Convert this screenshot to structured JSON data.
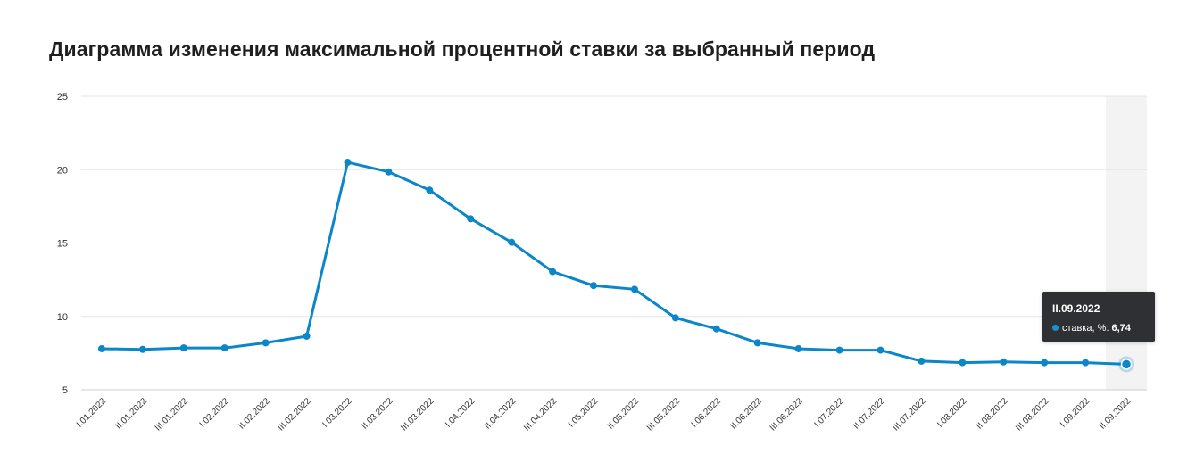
{
  "chart_data": {
    "type": "line",
    "title": "Диаграмма изменения максимальной процентной ставки за выбранный период",
    "xlabel": "",
    "ylabel": "",
    "ylim": [
      5,
      25
    ],
    "yticks": [
      5,
      10,
      15,
      20,
      25
    ],
    "grid": true,
    "categories": [
      "I.01.2022",
      "II.01.2022",
      "III.01.2022",
      "I.02.2022",
      "II.02.2022",
      "III.02.2022",
      "I.03.2022",
      "II.03.2022",
      "III.03.2022",
      "I.04.2022",
      "II.04.2022",
      "III.04.2022",
      "I.05.2022",
      "II.05.2022",
      "III.05.2022",
      "I.06.2022",
      "II.06.2022",
      "III.06.2022",
      "I.07.2022",
      "II.07.2022",
      "III.07.2022",
      "I.08.2022",
      "II.08.2022",
      "III.08.2022",
      "I.09.2022",
      "II.09.2022"
    ],
    "series": [
      {
        "name": "ставка, %",
        "color": "#0a86c9",
        "values": [
          7.8,
          7.75,
          7.85,
          7.85,
          8.2,
          8.65,
          20.5,
          19.85,
          18.6,
          16.65,
          15.05,
          13.05,
          12.1,
          11.85,
          9.9,
          9.15,
          8.2,
          7.8,
          7.7,
          7.7,
          6.95,
          6.85,
          6.9,
          6.85,
          6.85,
          6.74
        ]
      }
    ],
    "highlight_index": 25,
    "tooltip": {
      "title": "II.09.2022",
      "series_label": "ставка, %:",
      "value": "6,74"
    }
  }
}
